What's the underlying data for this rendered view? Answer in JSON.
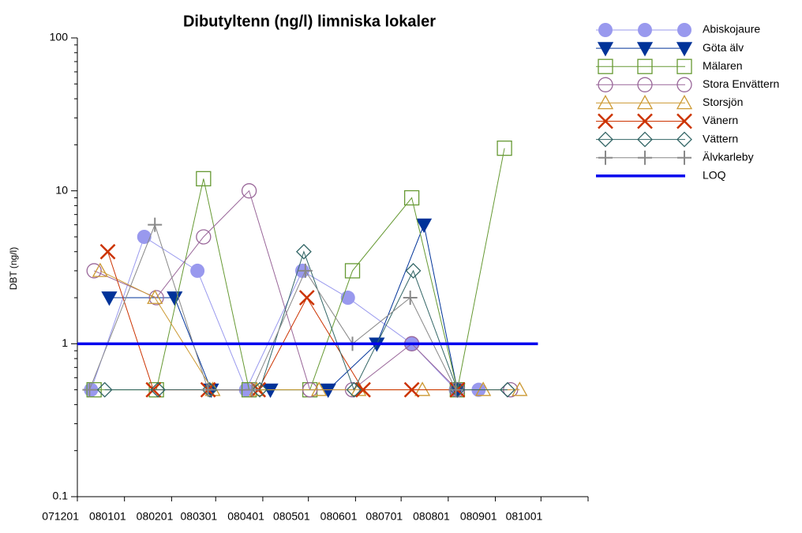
{
  "chart_data": {
    "type": "line",
    "title": "Dibutyltenn (ng/l) limniska lokaler",
    "y_label": "DBT (ng/l)",
    "ylog": true,
    "ylim": [
      0.1,
      100
    ],
    "yticks": [
      0.1,
      1,
      10,
      100
    ],
    "xlim": [
      0,
      336
    ],
    "xticks": [
      {
        "value": 0,
        "label": "071201"
      },
      {
        "value": 31,
        "label": "080101"
      },
      {
        "value": 62,
        "label": "080201"
      },
      {
        "value": 91,
        "label": "080301"
      },
      {
        "value": 122,
        "label": "080401"
      },
      {
        "value": 152,
        "label": "080501"
      },
      {
        "value": 183,
        "label": "080601"
      },
      {
        "value": 213,
        "label": "080701"
      },
      {
        "value": 244,
        "label": "080801"
      },
      {
        "value": 275,
        "label": "080901"
      },
      {
        "value": 305,
        "label": "081001"
      }
    ],
    "legend": "right",
    "series": [
      {
        "name": "Abiskojaure",
        "color": "#9999ee",
        "marker": "circle-filled",
        "x": [
          9,
          44,
          79,
          111,
          148,
          178,
          220,
          249,
          264
        ],
        "values": [
          0.5,
          5,
          3,
          0.5,
          3,
          2,
          1,
          0.5,
          0.5
        ]
      },
      {
        "name": "Göta älv",
        "color": "#003399",
        "marker": "triangle-down-filled",
        "x": [
          21,
          64,
          88,
          127,
          165,
          197,
          228,
          250
        ],
        "values": [
          2,
          2,
          0.5,
          0.5,
          0.5,
          1,
          6,
          0.5
        ]
      },
      {
        "name": "Mälaren",
        "color": "#669933",
        "marker": "square",
        "x": [
          11,
          52,
          83,
          113,
          153,
          181,
          220,
          250,
          281
        ],
        "values": [
          0.5,
          0.5,
          12,
          0.5,
          0.5,
          3,
          9,
          0.5,
          19
        ]
      },
      {
        "name": "Stora Envättern",
        "color": "#996699",
        "marker": "circle",
        "x": [
          11,
          52,
          83,
          113,
          153,
          181,
          220,
          250,
          285
        ],
        "values": [
          3,
          2,
          5,
          10,
          0.5,
          0.5,
          1,
          0.5,
          0.5
        ]
      },
      {
        "name": "Storsjön",
        "color": "#cc9933",
        "marker": "triangle-up",
        "x": [
          15,
          51,
          89,
          118,
          159,
          185,
          227,
          267,
          291
        ],
        "values": [
          3,
          2,
          0.5,
          0.5,
          0.5,
          0.5,
          0.5,
          0.5,
          0.5
        ]
      },
      {
        "name": "Vänern",
        "color": "#cc3300",
        "marker": "x",
        "x": [
          20,
          50,
          86,
          119,
          151,
          188,
          220,
          250
        ],
        "values": [
          4,
          0.5,
          0.5,
          0.5,
          2,
          0.5,
          0.5,
          0.5
        ]
      },
      {
        "name": "Vättern",
        "color": "#336666",
        "marker": "diamond",
        "x": [
          18,
          53,
          87,
          120,
          149,
          182,
          221,
          250,
          283
        ],
        "values": [
          0.5,
          0.5,
          0.5,
          0.5,
          4,
          0.5,
          3,
          0.5,
          0.5
        ]
      },
      {
        "name": "Älvkarleby",
        "color": "#888888",
        "marker": "plus",
        "x": [
          8,
          51,
          86,
          115,
          150,
          181,
          219,
          249
        ],
        "values": [
          0.5,
          6,
          0.5,
          0.5,
          3,
          1,
          2,
          0.5
        ]
      },
      {
        "name": "LOQ",
        "color": "#0000ee",
        "marker": "none",
        "x": [
          0,
          303
        ],
        "values": [
          1,
          1
        ]
      }
    ]
  }
}
